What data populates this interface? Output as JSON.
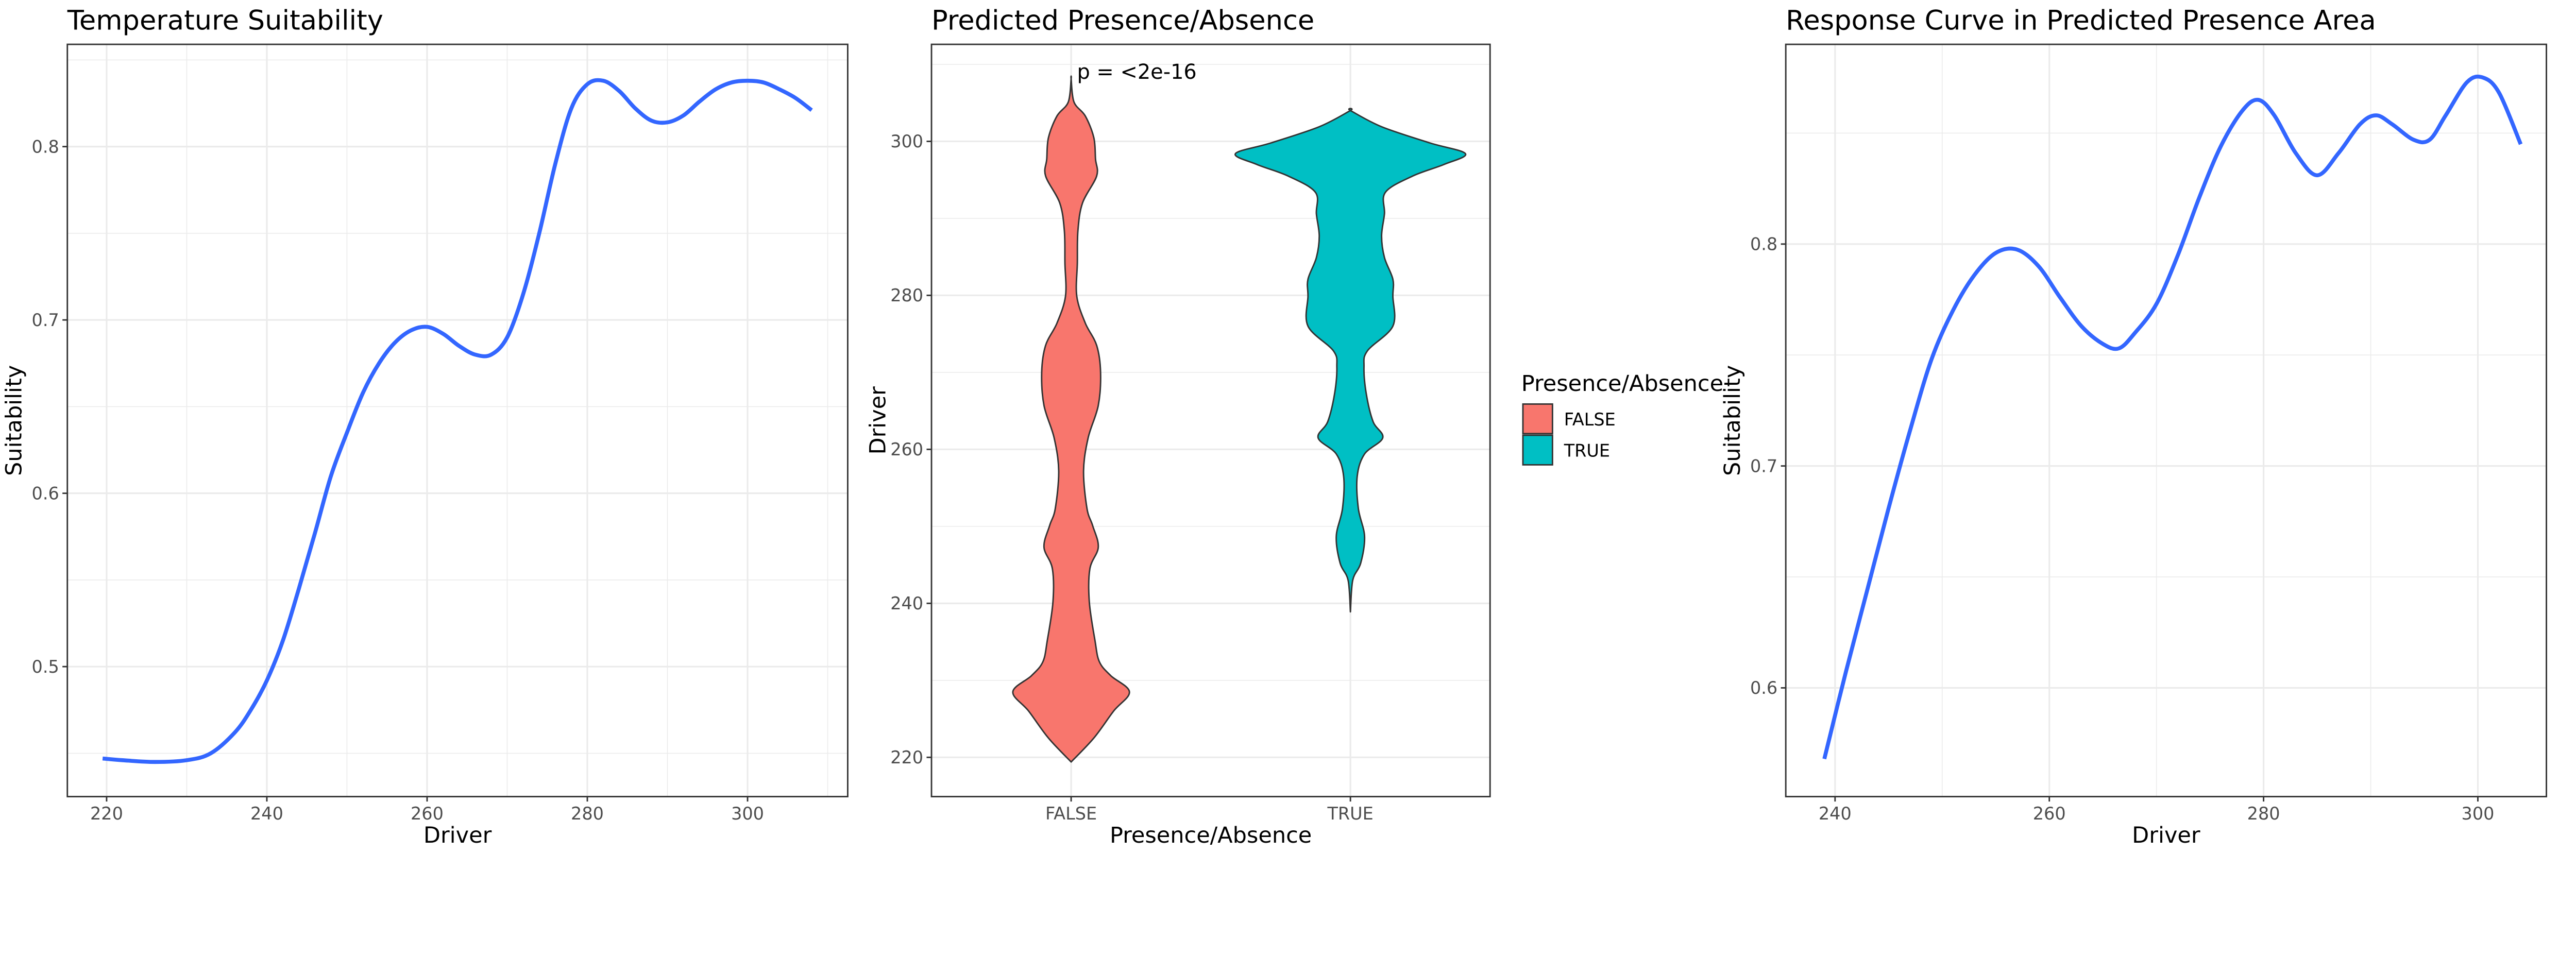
{
  "chart_data": [
    {
      "type": "line",
      "title": "Temperature Suitability",
      "xlabel": "Driver",
      "ylabel": "Suitability",
      "xlim": [
        215.1,
        312.5
      ],
      "ylim": [
        0.425,
        0.859
      ],
      "xticks": [
        220,
        240,
        260,
        280,
        300
      ],
      "yticks": [
        0.5,
        0.6,
        0.7,
        0.8
      ],
      "grid": true,
      "line_color": "#3366FF",
      "x": [
        219.5,
        222,
        226,
        230,
        233,
        236,
        238,
        240,
        242,
        244,
        246,
        248,
        250,
        252,
        254,
        256,
        258,
        260,
        262,
        264,
        266,
        268,
        270,
        272,
        274,
        276,
        278,
        280,
        282,
        284,
        286,
        288,
        290,
        292,
        294,
        296,
        298,
        300,
        302,
        304,
        306,
        308
      ],
      "y": [
        0.447,
        0.446,
        0.445,
        0.446,
        0.45,
        0.462,
        0.475,
        0.492,
        0.515,
        0.545,
        0.577,
        0.61,
        0.635,
        0.658,
        0.675,
        0.687,
        0.694,
        0.696,
        0.692,
        0.685,
        0.68,
        0.68,
        0.69,
        0.715,
        0.75,
        0.79,
        0.822,
        0.836,
        0.838,
        0.832,
        0.822,
        0.815,
        0.814,
        0.818,
        0.826,
        0.833,
        0.837,
        0.838,
        0.837,
        0.833,
        0.828,
        0.821
      ]
    },
    {
      "type": "violin",
      "title": "Predicted Presence/Absence",
      "xlabel": "Presence/Absence",
      "ylabel": "Driver",
      "categories": [
        "FALSE",
        "TRUE"
      ],
      "ylim": [
        214.9,
        312.6
      ],
      "yticks": [
        220,
        240,
        260,
        280,
        300
      ],
      "grid": true,
      "annotation": "p = <2e-16",
      "legend": {
        "title": "Presence/Absence",
        "placement": "right",
        "entries": [
          {
            "label": "FALSE",
            "color": "#F8766D"
          },
          {
            "label": "TRUE",
            "color": "#00BFC4"
          }
        ]
      },
      "series": [
        {
          "name": "FALSE",
          "color": "#F8766D",
          "y": [
            219.4,
            222.5,
            226.0,
            228.5,
            230.6,
            232.4,
            235.2,
            240.2,
            244.5,
            247.3,
            250.1,
            252.3,
            257.2,
            261.5,
            265.7,
            270.0,
            273.5,
            276.4,
            279.9,
            284.2,
            288.4,
            292.0,
            295.5,
            297.7,
            300.5,
            303.3,
            305.1,
            308.1
          ],
          "density": [
            0,
            0.197,
            0.369,
            0.507,
            0.345,
            0.246,
            0.207,
            0.158,
            0.163,
            0.236,
            0.187,
            0.138,
            0.108,
            0.148,
            0.236,
            0.256,
            0.222,
            0.123,
            0.049,
            0.054,
            0.059,
            0.099,
            0.222,
            0.212,
            0.197,
            0.123,
            0.025,
            0
          ]
        },
        {
          "name": "TRUE",
          "color": "#00BFC4",
          "y": [
            238.9,
            243.0,
            245.2,
            248.7,
            252.3,
            256.5,
            259.4,
            261.5,
            263.6,
            267.2,
            270.7,
            272.8,
            276.0,
            279.9,
            282.1,
            284.9,
            287.7,
            290.6,
            293.4,
            295.5,
            297.0,
            298.4,
            299.8,
            301.9,
            304.0
          ],
          "density": [
            0,
            0.02,
            0.089,
            0.123,
            0.069,
            0.059,
            0.123,
            0.281,
            0.197,
            0.138,
            0.118,
            0.148,
            0.369,
            0.369,
            0.369,
            0.296,
            0.271,
            0.296,
            0.305,
            0.542,
            0.813,
            1.0,
            0.69,
            0.271,
            0
          ]
        }
      ]
    },
    {
      "type": "line",
      "title": "Response Curve in Predicted Presence Area",
      "xlabel": "Driver",
      "ylabel": "Suitability",
      "xlim": [
        235.4,
        306.4
      ],
      "ylim": [
        0.551,
        0.89
      ],
      "xticks": [
        240,
        260,
        280,
        300
      ],
      "yticks": [
        0.6,
        0.7,
        0.8
      ],
      "grid": true,
      "line_color": "#3366FF",
      "x": [
        239,
        241,
        243,
        245,
        247,
        249,
        251,
        253,
        255,
        257,
        259,
        261,
        263,
        265,
        266.5,
        268,
        270,
        272,
        274,
        276,
        278,
        279.5,
        281,
        283,
        285,
        287,
        289,
        290.5,
        292,
        294,
        295.5,
        297,
        299,
        300.5,
        302,
        304
      ],
      "y": [
        0.568,
        0.607,
        0.644,
        0.681,
        0.716,
        0.748,
        0.77,
        0.786,
        0.796,
        0.7975,
        0.79,
        0.776,
        0.763,
        0.755,
        0.753,
        0.76,
        0.773,
        0.795,
        0.821,
        0.844,
        0.86,
        0.865,
        0.858,
        0.841,
        0.831,
        0.841,
        0.854,
        0.858,
        0.854,
        0.847,
        0.847,
        0.858,
        0.873,
        0.875,
        0.868,
        0.845
      ]
    }
  ]
}
